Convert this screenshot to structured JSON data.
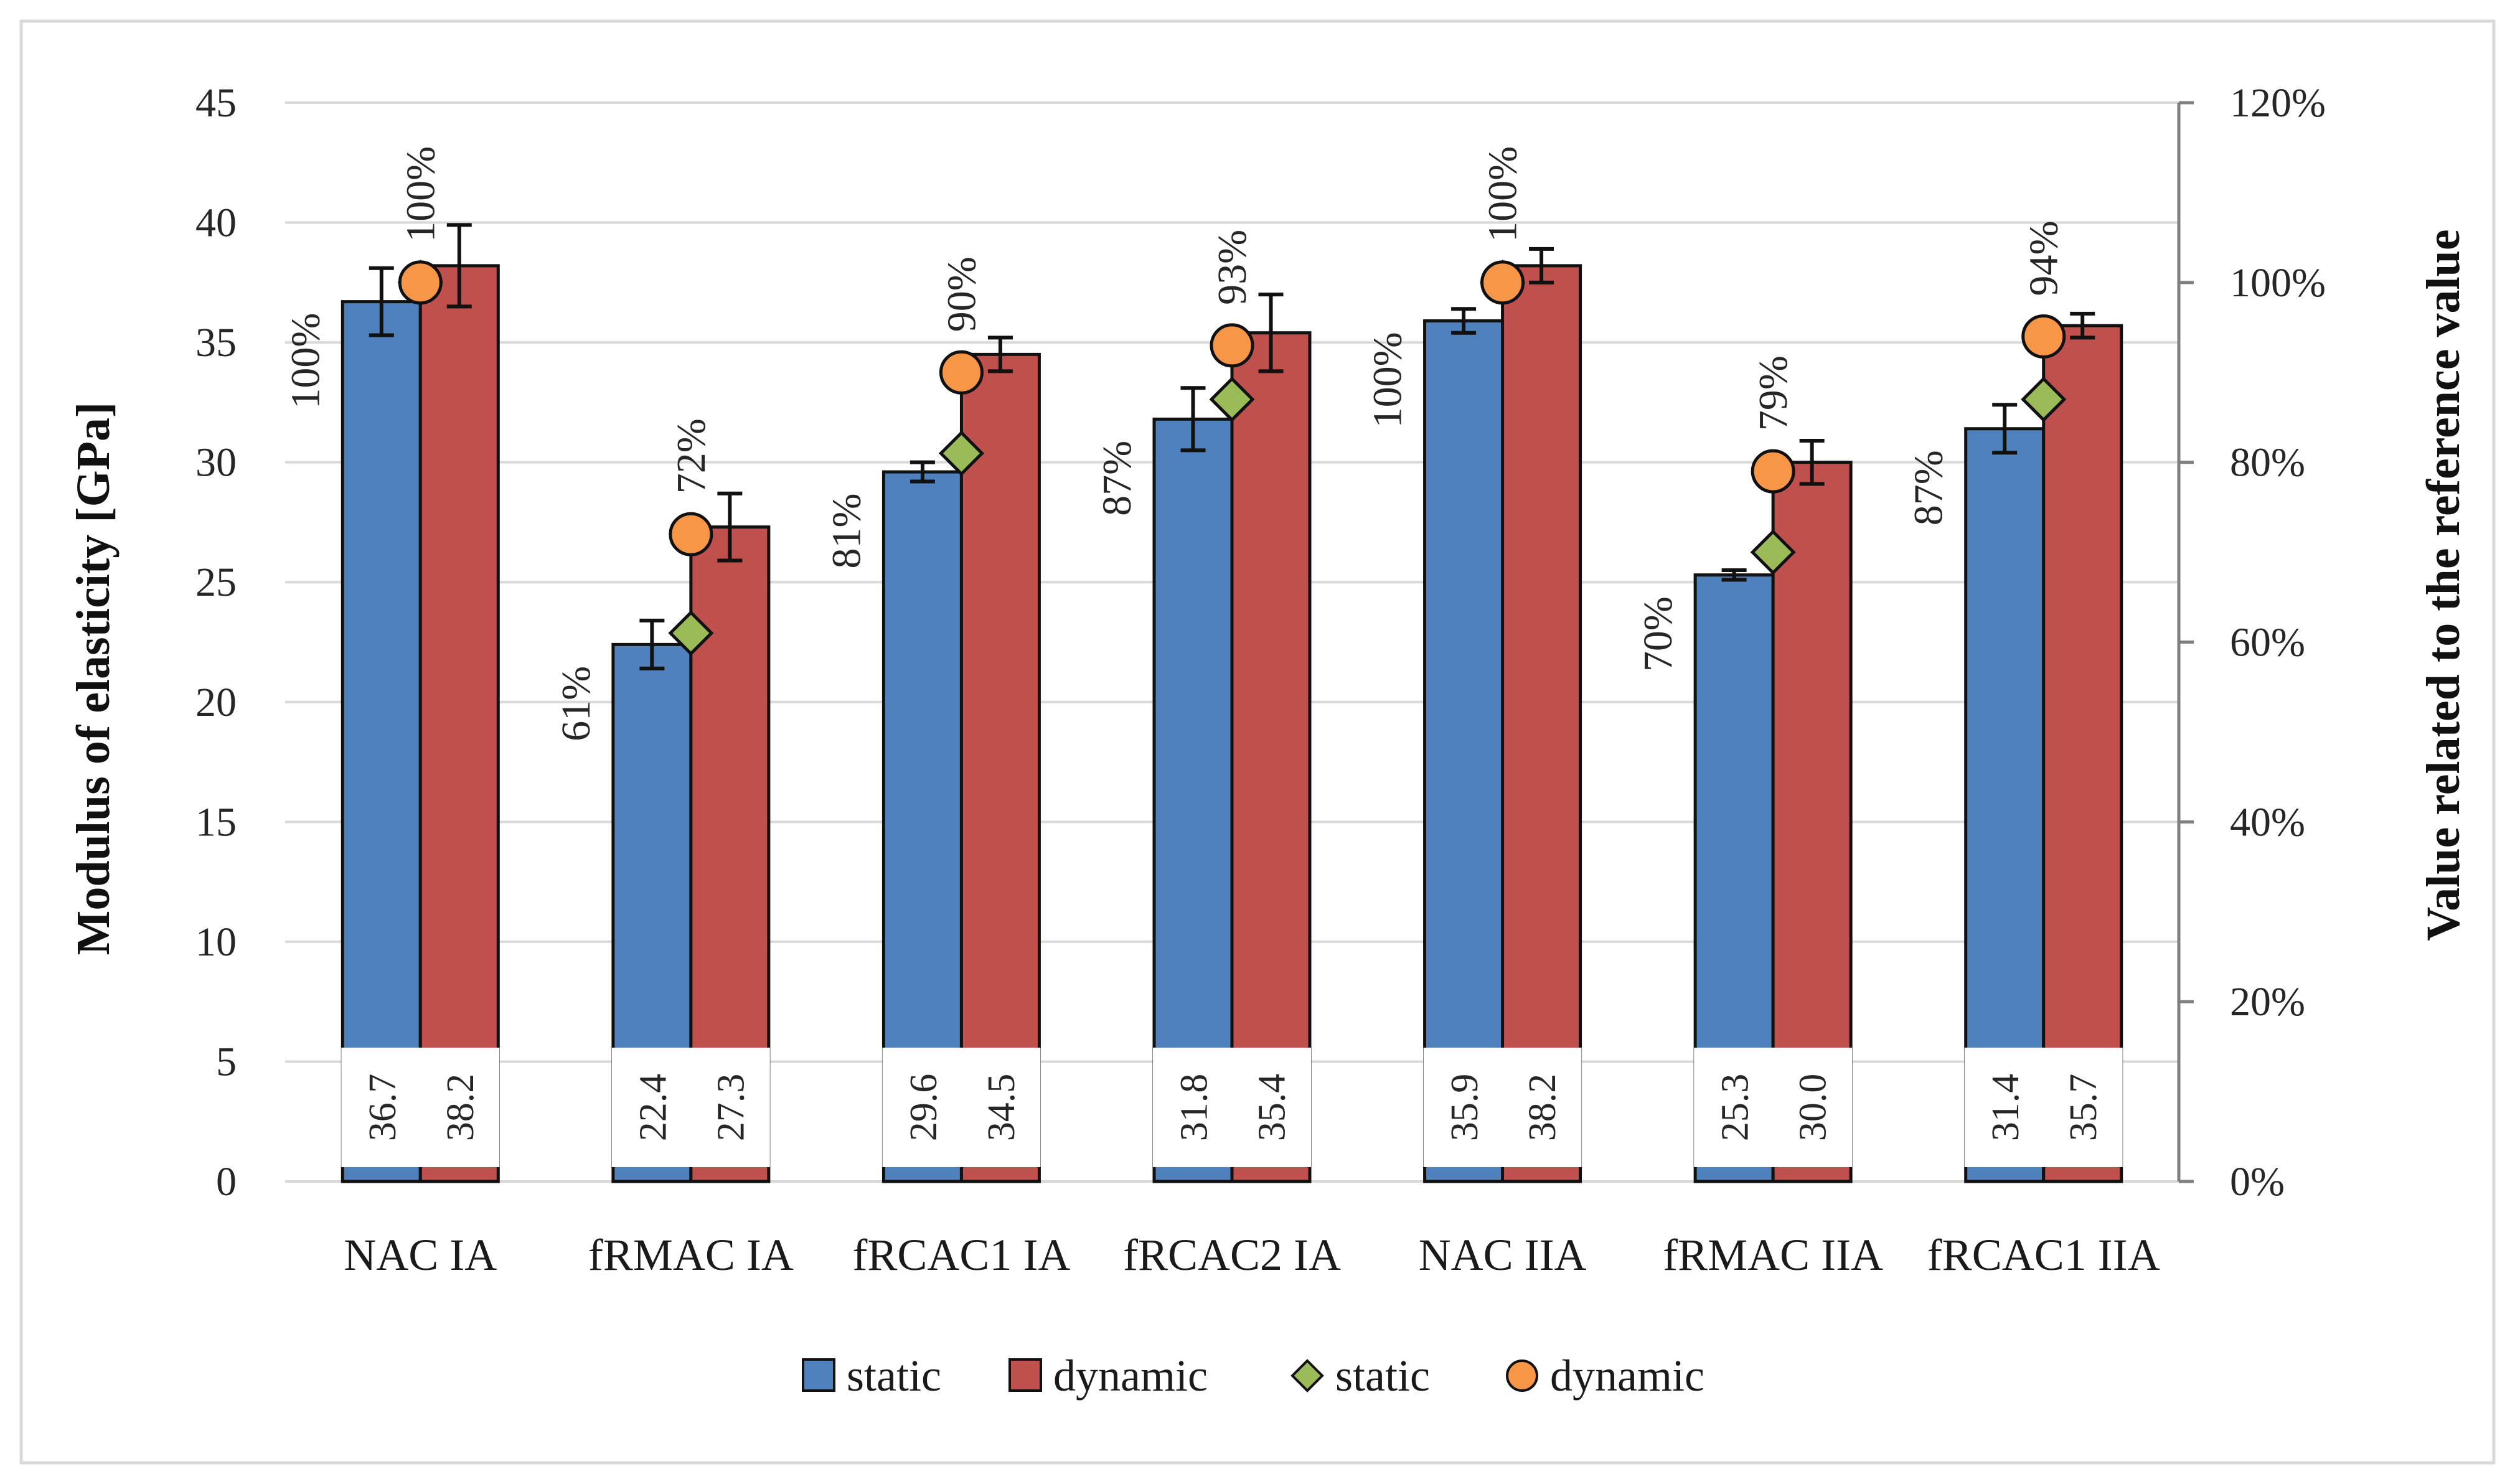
{
  "chart_data": {
    "type": "bar",
    "categories": [
      "NAC IA",
      "fRMAC IA",
      "fRCAC1 IA",
      "fRCAC2 IA",
      "NAC IIA",
      "fRMAC IIA",
      "fRCAC1 IIA"
    ],
    "series": [
      {
        "name": "static",
        "type": "bar",
        "axis": "left",
        "color": "#4F81BD",
        "values": [
          36.7,
          22.4,
          29.6,
          31.8,
          35.9,
          25.3,
          31.4
        ],
        "value_labels": [
          "36.7",
          "22.4",
          "29.6",
          "31.8",
          "35.9",
          "25.3",
          "31.4"
        ],
        "error": [
          1.4,
          1.0,
          0.4,
          1.3,
          0.5,
          0.2,
          1.0
        ]
      },
      {
        "name": "dynamic",
        "type": "bar",
        "axis": "left",
        "color": "#C0504D",
        "values": [
          38.2,
          27.3,
          34.5,
          35.4,
          38.2,
          30.0,
          35.7
        ],
        "value_labels": [
          "38.2",
          "27.3",
          "34.5",
          "35.4",
          "38.2",
          "30.0",
          "35.7"
        ],
        "error": [
          1.7,
          1.4,
          0.7,
          1.6,
          0.7,
          0.9,
          0.5
        ]
      },
      {
        "name": "static",
        "type": "marker",
        "marker": "diamond",
        "axis": "right",
        "color": "#9BBB59",
        "values": [
          1.0,
          0.61,
          0.81,
          0.87,
          1.0,
          0.7,
          0.87
        ],
        "labels": [
          "100%",
          "61%",
          "81%",
          "87%",
          "100%",
          "70%",
          "87%"
        ]
      },
      {
        "name": "dynamic",
        "type": "marker",
        "marker": "circle",
        "axis": "right",
        "color": "#F79646",
        "values": [
          1.0,
          0.72,
          0.9,
          0.93,
          1.0,
          0.79,
          0.94
        ],
        "labels": [
          "100%",
          "72%",
          "90%",
          "93%",
          "100%",
          "79%",
          "94%"
        ]
      }
    ],
    "ylabel": "Modulus of elasticity [GPa]",
    "y2label": "Value related to the reference value",
    "ylim": [
      0,
      45
    ],
    "y2lim": [
      0,
      1.2
    ],
    "yticks": [
      "0",
      "5",
      "10",
      "15",
      "20",
      "25",
      "30",
      "35",
      "40",
      "45"
    ],
    "y2ticks": [
      "0%",
      "20%",
      "40%",
      "60%",
      "80%",
      "100%",
      "120%"
    ],
    "grid": true,
    "legend_position": "bottom"
  }
}
